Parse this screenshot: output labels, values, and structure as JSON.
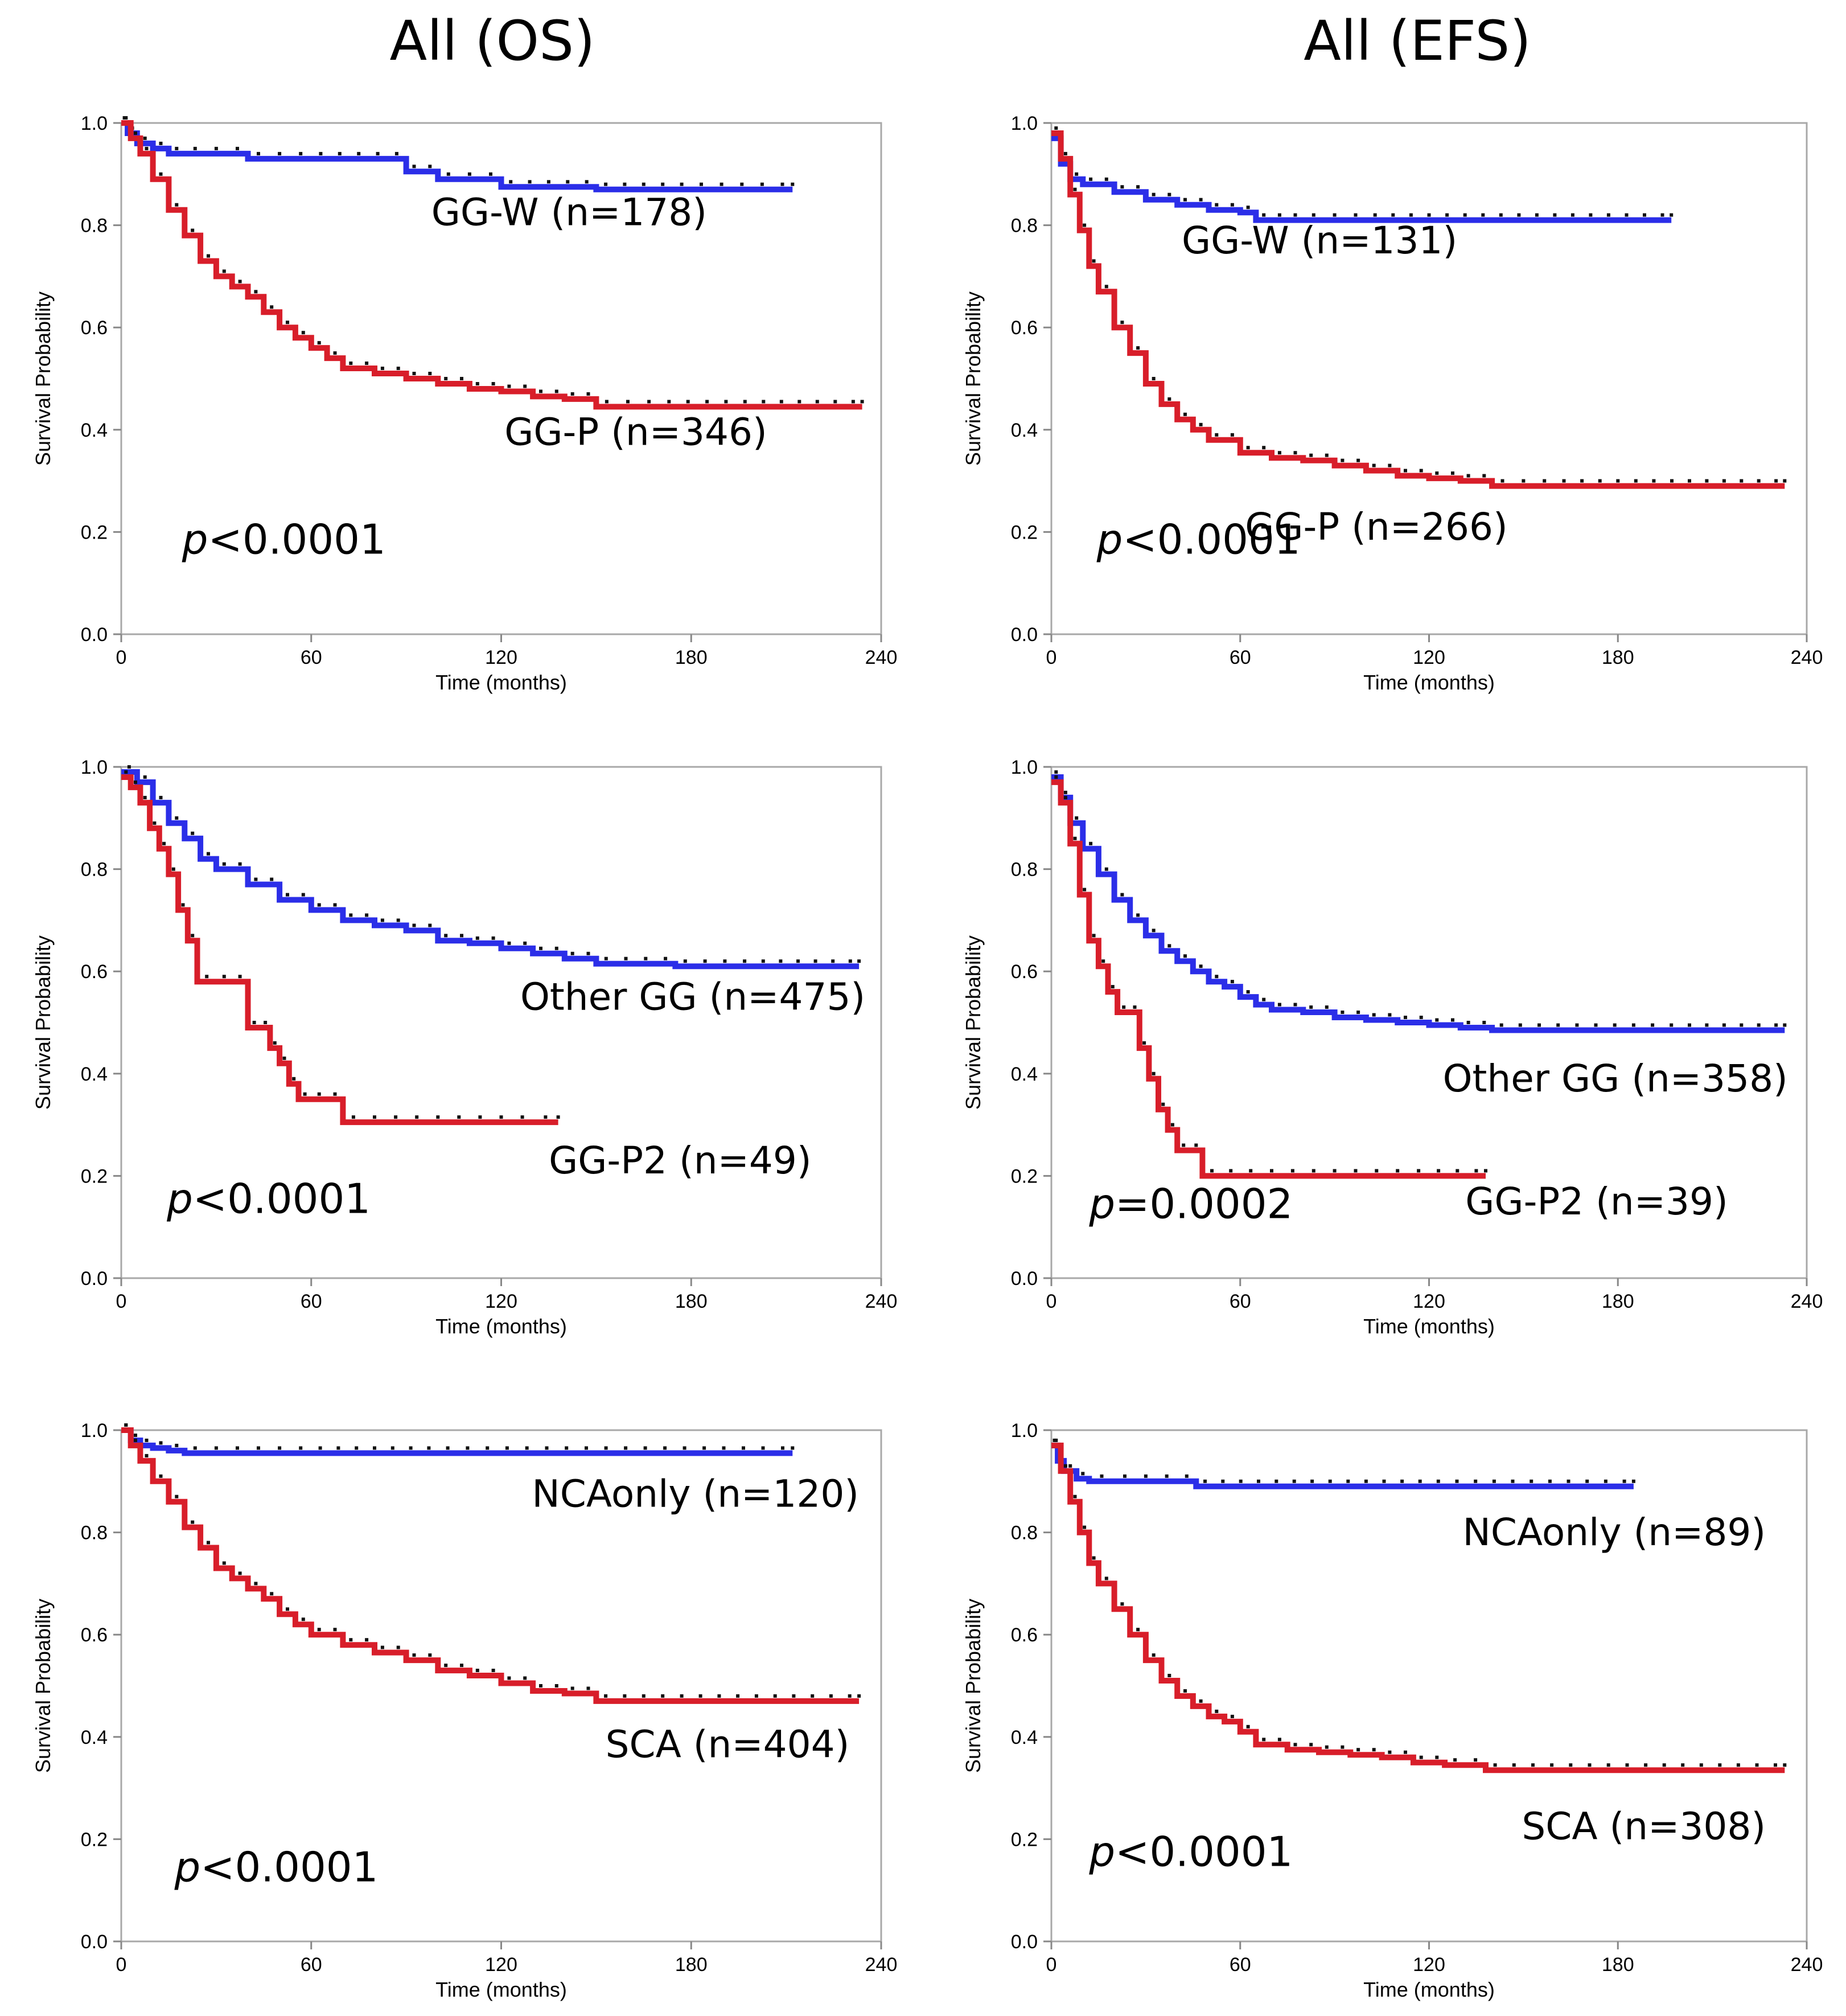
{
  "column_titles": [
    "All (OS)",
    "All (EFS)"
  ],
  "colors": {
    "favorable": "#2b2ee8",
    "unfavorable": "#d81e2a",
    "censor": "#111111",
    "frame": "#a8a8a8"
  },
  "chart_data": [
    {
      "type": "line",
      "title": "All (OS)",
      "xlabel": "Time (months)",
      "ylabel": "Survival Probability",
      "xlim": [
        0,
        240
      ],
      "ylim": [
        0,
        1.0
      ],
      "xticks": [
        "0",
        "60",
        "120",
        "180",
        "240"
      ],
      "yticks": [
        "0.0",
        "0.2",
        "0.4",
        "0.6",
        "0.8",
        "1.0"
      ],
      "p_prefix": "p",
      "p_value": "<0.0001",
      "series": [
        {
          "name": "GG-W  (n=178)",
          "color": "#2b2ee8",
          "label_at": [
            185,
            0.8
          ],
          "x": [
            0,
            2,
            5,
            10,
            15,
            20,
            40,
            60,
            90,
            100,
            120,
            150,
            180,
            212
          ],
          "y": [
            1.0,
            0.98,
            0.96,
            0.95,
            0.94,
            0.94,
            0.93,
            0.93,
            0.905,
            0.89,
            0.875,
            0.87,
            0.87,
            0.87
          ]
        },
        {
          "name": "GG-P (n=346)",
          "color": "#d81e2a",
          "label_at": [
            204,
            0.37
          ],
          "x": [
            0,
            3,
            6,
            10,
            15,
            20,
            25,
            30,
            35,
            40,
            45,
            50,
            55,
            60,
            65,
            70,
            80,
            90,
            100,
            110,
            120,
            130,
            140,
            150,
            170,
            200,
            234
          ],
          "y": [
            1.0,
            0.97,
            0.94,
            0.89,
            0.83,
            0.78,
            0.73,
            0.7,
            0.68,
            0.66,
            0.63,
            0.6,
            0.58,
            0.56,
            0.54,
            0.52,
            0.51,
            0.5,
            0.49,
            0.48,
            0.475,
            0.465,
            0.46,
            0.445,
            0.445,
            0.445,
            0.445
          ]
        }
      ]
    },
    {
      "type": "line",
      "title": "All (EFS)",
      "xlabel": "Time (months)",
      "ylabel": "Survival Probability",
      "xlim": [
        0,
        240
      ],
      "ylim": [
        0,
        1.0
      ],
      "xticks": [
        "0",
        "60",
        "120",
        "180",
        "240"
      ],
      "yticks": [
        "0.0",
        "0.2",
        "0.4",
        "0.6",
        "0.8",
        "1.0"
      ],
      "p_prefix": "p",
      "p_value": "<0.0001",
      "series": [
        {
          "name": "GG-W (n=131)",
          "color": "#2b2ee8",
          "label_at": [
            129,
            0.745
          ],
          "x": [
            0,
            3,
            6,
            10,
            20,
            30,
            40,
            50,
            60,
            65,
            80,
            100,
            140,
            197
          ],
          "y": [
            0.97,
            0.92,
            0.89,
            0.88,
            0.865,
            0.85,
            0.84,
            0.83,
            0.825,
            0.81,
            0.81,
            0.81,
            0.81,
            0.81
          ]
        },
        {
          "name": "GG-P (n=266)",
          "color": "#d81e2a",
          "label_at": [
            145,
            0.185
          ],
          "x": [
            0,
            3,
            6,
            9,
            12,
            15,
            20,
            25,
            30,
            35,
            40,
            45,
            50,
            60,
            70,
            80,
            90,
            100,
            110,
            120,
            130,
            140,
            160,
            200,
            233
          ],
          "y": [
            0.98,
            0.93,
            0.86,
            0.79,
            0.72,
            0.67,
            0.6,
            0.55,
            0.49,
            0.45,
            0.42,
            0.4,
            0.38,
            0.355,
            0.345,
            0.34,
            0.33,
            0.32,
            0.31,
            0.305,
            0.3,
            0.29,
            0.29,
            0.29,
            0.29
          ]
        }
      ]
    },
    {
      "type": "line",
      "title": "",
      "xlabel": "Time (months)",
      "ylabel": "Survival Probability",
      "xlim": [
        0,
        240
      ],
      "ylim": [
        0,
        1.0
      ],
      "xticks": [
        "0",
        "60",
        "120",
        "180",
        "240"
      ],
      "yticks": [
        "0.0",
        "0.2",
        "0.4",
        "0.6",
        "0.8",
        "1.0"
      ],
      "p_prefix": "p",
      "p_value": "<0.0001",
      "series": [
        {
          "name": "Other GG (n=475)",
          "color": "#2b2ee8",
          "label_at": [
            235,
            0.525
          ],
          "x": [
            0,
            5,
            10,
            15,
            20,
            25,
            30,
            40,
            50,
            60,
            70,
            80,
            90,
            100,
            110,
            120,
            130,
            140,
            150,
            175,
            200,
            233
          ],
          "y": [
            0.99,
            0.97,
            0.93,
            0.89,
            0.86,
            0.82,
            0.8,
            0.77,
            0.74,
            0.72,
            0.7,
            0.69,
            0.68,
            0.66,
            0.655,
            0.645,
            0.635,
            0.625,
            0.615,
            0.61,
            0.61,
            0.61
          ]
        },
        {
          "name": "GG-P2 (n=49)",
          "color": "#d81e2a",
          "label_at": [
            218,
            0.205
          ],
          "x": [
            0,
            3,
            6,
            9,
            12,
            15,
            18,
            21,
            24,
            30,
            35,
            40,
            44,
            47,
            50,
            53,
            56,
            60,
            65,
            70,
            90,
            110,
            130,
            138
          ],
          "y": [
            0.98,
            0.96,
            0.93,
            0.88,
            0.84,
            0.79,
            0.72,
            0.66,
            0.58,
            0.58,
            0.58,
            0.49,
            0.49,
            0.45,
            0.42,
            0.38,
            0.35,
            0.35,
            0.35,
            0.305,
            0.305,
            0.305,
            0.305,
            0.305
          ]
        }
      ]
    },
    {
      "type": "line",
      "title": "",
      "xlabel": "Time (months)",
      "ylabel": "Survival Probability",
      "xlim": [
        0,
        240
      ],
      "ylim": [
        0,
        1.0
      ],
      "xticks": [
        "0",
        "60",
        "120",
        "180",
        "240"
      ],
      "yticks": [
        "0.0",
        "0.2",
        "0.4",
        "0.6",
        "0.8",
        "1.0"
      ],
      "p_prefix": "p",
      "p_value": "=0.0002",
      "series": [
        {
          "name": "Other GG (n=358)",
          "color": "#2b2ee8",
          "label_at": [
            234,
            0.365
          ],
          "x": [
            0,
            3,
            6,
            10,
            15,
            20,
            25,
            30,
            35,
            40,
            45,
            50,
            55,
            60,
            65,
            70,
            80,
            90,
            100,
            110,
            120,
            130,
            140,
            170,
            200,
            233
          ],
          "y": [
            0.98,
            0.94,
            0.89,
            0.84,
            0.79,
            0.74,
            0.7,
            0.67,
            0.64,
            0.62,
            0.6,
            0.58,
            0.57,
            0.55,
            0.535,
            0.525,
            0.52,
            0.51,
            0.505,
            0.5,
            0.495,
            0.49,
            0.485,
            0.485,
            0.485,
            0.485
          ]
        },
        {
          "name": "GG-P2 (n=39)",
          "color": "#d81e2a",
          "label_at": [
            215,
            0.125
          ],
          "x": [
            0,
            3,
            6,
            9,
            12,
            15,
            18,
            21,
            25,
            28,
            31,
            34,
            37,
            40,
            44,
            48,
            60,
            80,
            100,
            120,
            138
          ],
          "y": [
            0.97,
            0.93,
            0.85,
            0.75,
            0.66,
            0.61,
            0.56,
            0.52,
            0.52,
            0.45,
            0.39,
            0.33,
            0.29,
            0.25,
            0.25,
            0.2,
            0.2,
            0.2,
            0.2,
            0.2,
            0.2
          ]
        }
      ]
    },
    {
      "type": "line",
      "title": "",
      "xlabel": "Time (months)",
      "ylabel": "Survival Probability",
      "xlim": [
        0,
        240
      ],
      "ylim": [
        0,
        1.0
      ],
      "xticks": [
        "0",
        "60",
        "120",
        "180",
        "240"
      ],
      "yticks": [
        "0.0",
        "0.2",
        "0.4",
        "0.6",
        "0.8",
        "1.0"
      ],
      "p_prefix": "p",
      "p_value": "<0.0001",
      "series": [
        {
          "name": "NCAonly (n=120)",
          "color": "#2b2ee8",
          "label_at": [
            233,
            0.85
          ],
          "x": [
            0,
            3,
            6,
            10,
            15,
            20,
            40,
            60,
            100,
            150,
            212
          ],
          "y": [
            1.0,
            0.98,
            0.97,
            0.965,
            0.96,
            0.955,
            0.955,
            0.955,
            0.955,
            0.955,
            0.955
          ]
        },
        {
          "name": "SCA (n=404)",
          "color": "#d81e2a",
          "label_at": [
            230,
            0.36
          ],
          "x": [
            0,
            3,
            6,
            10,
            15,
            20,
            25,
            30,
            35,
            40,
            45,
            50,
            55,
            60,
            70,
            80,
            90,
            100,
            110,
            120,
            130,
            140,
            150,
            180,
            233
          ],
          "y": [
            1.0,
            0.97,
            0.94,
            0.9,
            0.86,
            0.81,
            0.77,
            0.73,
            0.71,
            0.69,
            0.67,
            0.64,
            0.62,
            0.6,
            0.58,
            0.565,
            0.55,
            0.53,
            0.52,
            0.505,
            0.49,
            0.485,
            0.47,
            0.47,
            0.47
          ]
        }
      ]
    },
    {
      "type": "line",
      "title": "",
      "xlabel": "Time (months)",
      "ylabel": "Survival Probability",
      "xlim": [
        0,
        240
      ],
      "ylim": [
        0,
        1.0
      ],
      "xticks": [
        "0",
        "60",
        "120",
        "180",
        "240"
      ],
      "yticks": [
        "0.0",
        "0.2",
        "0.4",
        "0.6",
        "0.8",
        "1.0"
      ],
      "p_prefix": "p",
      "p_value": "<0.0001",
      "series": [
        {
          "name": "NCAonly (n=89)",
          "color": "#2b2ee8",
          "label_at": [
            227,
            0.775
          ],
          "x": [
            0,
            2,
            4,
            8,
            12,
            20,
            40,
            46,
            80,
            120,
            185
          ],
          "y": [
            0.97,
            0.94,
            0.92,
            0.905,
            0.9,
            0.9,
            0.9,
            0.89,
            0.89,
            0.89,
            0.89
          ]
        },
        {
          "name": "SCA (n=308)",
          "color": "#d81e2a",
          "label_at": [
            227,
            0.2
          ],
          "x": [
            0,
            3,
            6,
            9,
            12,
            15,
            20,
            25,
            30,
            35,
            40,
            45,
            50,
            55,
            60,
            65,
            75,
            85,
            95,
            105,
            115,
            125,
            138,
            180,
            233
          ],
          "y": [
            0.97,
            0.92,
            0.86,
            0.8,
            0.74,
            0.7,
            0.65,
            0.6,
            0.55,
            0.51,
            0.48,
            0.46,
            0.44,
            0.43,
            0.41,
            0.385,
            0.375,
            0.37,
            0.365,
            0.36,
            0.35,
            0.345,
            0.335,
            0.335,
            0.335
          ]
        }
      ]
    }
  ]
}
